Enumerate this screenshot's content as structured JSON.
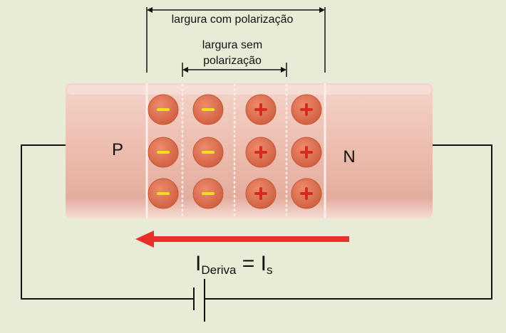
{
  "labels": {
    "width_with_bias": "largura com polarização",
    "width_without_bias_line1": "largura sem",
    "width_without_bias_line2": "polarização",
    "p_region": "P",
    "n_region": "N",
    "current_main": "I",
    "current_sub": "Deriva",
    "equals": " = ",
    "current2_main": "I",
    "current2_sub": "s"
  },
  "charges": {
    "negative_columns": 2,
    "positive_columns": 2,
    "rows": 3,
    "negative_symbol": "minus-icon",
    "positive_symbol": "plus-icon"
  },
  "colors": {
    "background": "#e8ecd6",
    "semiconductor": "#ecbcae",
    "ion": "#d9694a",
    "negative_mark": "#f2e020",
    "positive_mark": "#d62a1c",
    "arrow": "#e8302a",
    "wire": "#111111"
  },
  "arrow_direction": "left"
}
